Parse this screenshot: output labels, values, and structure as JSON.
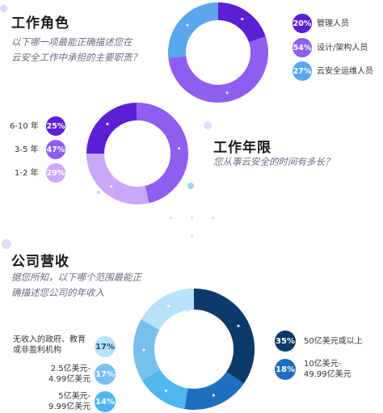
{
  "colors": {
    "purple_dark": "#5b1fd6",
    "purple_mid": "#8e5ef0",
    "purple_light": "#c9a8f7",
    "blue_light": "#5aa7ee",
    "navy": "#0b3a6b",
    "blue_mid": "#1e6fc2",
    "blue_pale": "#78bff0",
    "blue_sky": "#b8e2fa",
    "blue_dot": "#4fb6ee"
  },
  "section1": {
    "title": "工作角色",
    "subtitle_line1": "以下哪一项最能正确描述您在",
    "subtitle_line2": "云安全工作中承担的主要职责？"
  },
  "section2": {
    "title": "工作年限",
    "subtitle": "您从事云安全的时间有多长？"
  },
  "section3": {
    "title": "公司营收",
    "subtitle_line1": "据您所知，以下哪个范围最能正",
    "subtitle_line2": "确描述您公司的年收入"
  },
  "chart_data": [
    {
      "type": "pie",
      "title": "工作角色",
      "categories": [
        "管理人员",
        "设计/架构人员",
        "云安全运维人员"
      ],
      "values": [
        20,
        54,
        27
      ],
      "value_labels": [
        "20%",
        "54%",
        "27%"
      ]
    },
    {
      "type": "pie",
      "title": "工作年限",
      "categories": [
        "6-10 年",
        "3-5 年",
        "1-2 年"
      ],
      "values": [
        25,
        47,
        29
      ],
      "value_labels": [
        "25%",
        "47%",
        "29%"
      ]
    },
    {
      "type": "pie",
      "title": "公司营收",
      "categories": [
        "50亿美元或以上",
        "10亿美元-\n49.99亿美元",
        "5亿美元-\n9.99亿美元",
        "2.5亿美元-\n4.99亿美元",
        "无收入的政府、教育\n或非盈利机构"
      ],
      "values": [
        35,
        18,
        14,
        17,
        17
      ],
      "value_labels": [
        "35%",
        "18%",
        "14%",
        "17%",
        "17%"
      ]
    }
  ],
  "labels": {
    "roles": [
      "管理人员",
      "设计/架构人员",
      "云安全运维人员"
    ],
    "years": [
      "6-10 年",
      "3-5 年",
      "1-2 年"
    ],
    "rev_right_1": "50亿美元或以上",
    "rev_right_2a": "10亿美元-",
    "rev_right_2b": "49.99亿美元",
    "rev_left_1a": "无收入的政府、教育",
    "rev_left_1b": "或非盈利机构",
    "rev_left_2a": "2.5亿美元-",
    "rev_left_2b": "4.99亿美元",
    "rev_left_3a": "5亿美元-",
    "rev_left_3b": "9.99亿美元"
  }
}
